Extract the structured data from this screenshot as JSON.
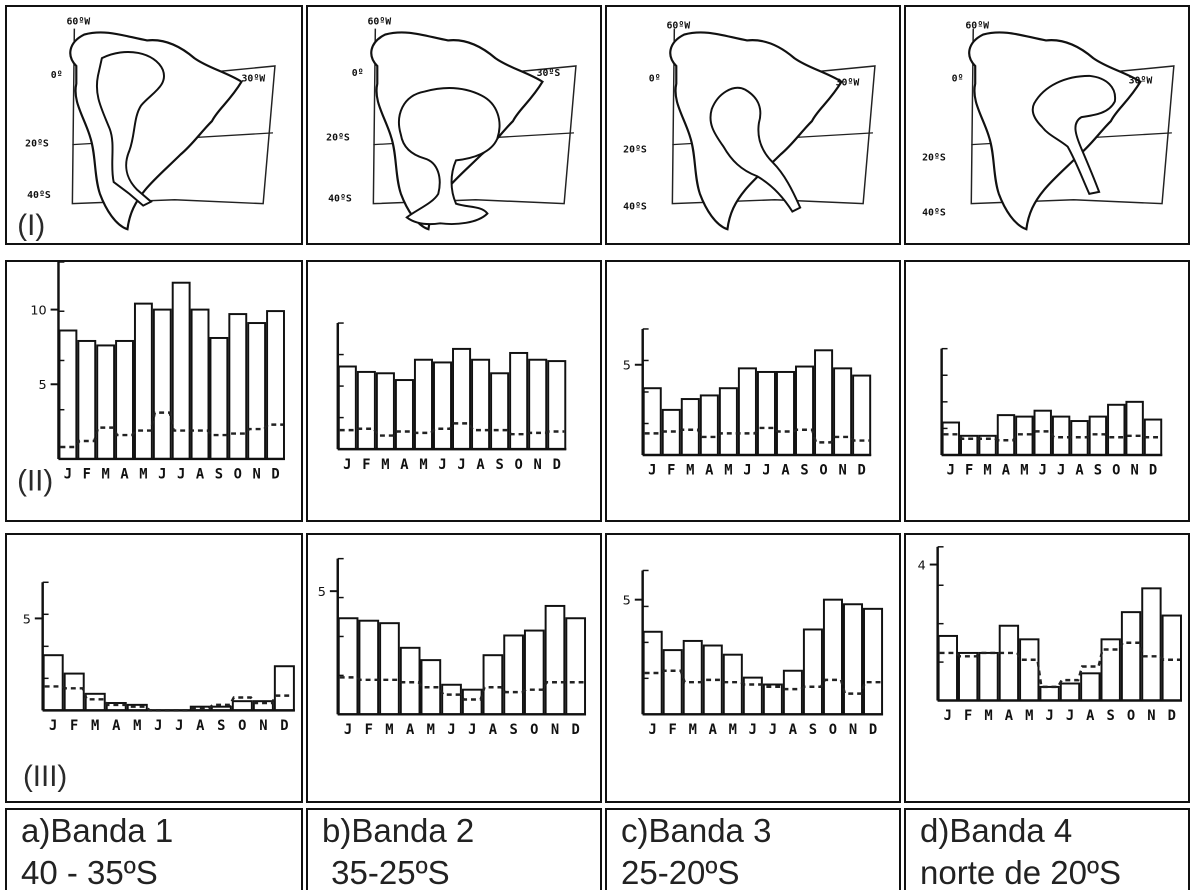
{
  "figure": {
    "panels": [
      {
        "id": "a",
        "caption_line1": "a)Banda 1",
        "caption_line2": "40 - 35ºS",
        "map_labels": [
          "60ºW",
          "0º",
          "30ºW",
          "20ºS",
          "40ºS"
        ]
      },
      {
        "id": "b",
        "caption_line1": "b)Banda 2",
        "caption_line2": " 35-25ºS",
        "map_labels": [
          "60ºW",
          "0º",
          "30ºS",
          "20ºS",
          "40ºS"
        ]
      },
      {
        "id": "c",
        "caption_line1": "c)Banda 3",
        "caption_line2": "25-20ºS",
        "map_labels": [
          "60ºW",
          "0º",
          "30ºW",
          "20ºS",
          "40ºS"
        ]
      },
      {
        "id": "d",
        "caption_line1": "d)Banda 4",
        "caption_line2": "norte de 20ºS",
        "map_labels": [
          "60ºW",
          "0º",
          "30ºW",
          "20ºS",
          "40ºS"
        ]
      }
    ],
    "row_labels": [
      "(I)",
      "(II)",
      "(III)"
    ]
  },
  "chart_data": [
    {
      "type": "bar",
      "panel": "a",
      "row": "II",
      "categories": [
        "J",
        "F",
        "M",
        "A",
        "M",
        "J",
        "J",
        "A",
        "S",
        "O",
        "N",
        "D"
      ],
      "series": [
        {
          "values": [
            8.6,
            7.9,
            7.6,
            7.9,
            10.4,
            10.0,
            11.8,
            10.0,
            8.1,
            9.7,
            9.1,
            9.9
          ]
        },
        {
          "values": [
            0.8,
            1.2,
            2.1,
            1.6,
            1.9,
            3.1,
            1.9,
            1.9,
            1.6,
            1.7,
            2.0,
            2.3
          ]
        }
      ],
      "ylim": [
        0,
        12
      ],
      "ytick_labels": [
        "5",
        "10"
      ]
    },
    {
      "type": "bar",
      "panel": "b",
      "row": "II",
      "categories": [
        "J",
        "F",
        "M",
        "A",
        "M",
        "J",
        "J",
        "A",
        "S",
        "O",
        "N",
        "D"
      ],
      "series": [
        {
          "values": [
            6.1,
            5.7,
            5.6,
            5.1,
            6.6,
            6.4,
            7.4,
            6.6,
            5.6,
            7.1,
            6.6,
            6.5
          ]
        },
        {
          "values": [
            1.4,
            1.5,
            1.0,
            1.3,
            1.2,
            1.5,
            1.9,
            1.4,
            1.4,
            1.1,
            1.2,
            1.3
          ]
        }
      ],
      "ylim": [
        0,
        8
      ]
    },
    {
      "type": "bar",
      "panel": "c",
      "row": "II",
      "categories": [
        "J",
        "F",
        "M",
        "A",
        "M",
        "J",
        "J",
        "A",
        "S",
        "O",
        "N",
        "D"
      ],
      "series": [
        {
          "values": [
            3.7,
            2.5,
            3.1,
            3.3,
            3.7,
            4.8,
            4.6,
            4.6,
            4.9,
            5.8,
            4.8,
            4.4
          ]
        },
        {
          "values": [
            1.2,
            1.3,
            1.4,
            1.0,
            1.2,
            1.2,
            1.5,
            1.3,
            1.4,
            0.7,
            1.0,
            0.8
          ]
        }
      ],
      "ylim": [
        0,
        6
      ],
      "ytick_labels": [
        "5"
      ]
    },
    {
      "type": "bar",
      "panel": "d",
      "row": "II",
      "categories": [
        "J",
        "F",
        "M",
        "A",
        "M",
        "J",
        "J",
        "A",
        "S",
        "O",
        "N",
        "D"
      ],
      "series": [
        {
          "values": [
            2.2,
            1.3,
            1.3,
            2.7,
            2.6,
            3.0,
            2.6,
            2.3,
            2.6,
            3.4,
            3.6,
            2.4
          ]
        },
        {
          "values": [
            1.4,
            1.1,
            1.1,
            1.0,
            1.4,
            1.6,
            1.2,
            1.2,
            1.4,
            1.2,
            1.3,
            1.2
          ]
        }
      ],
      "ylim": [
        0,
        6
      ]
    },
    {
      "type": "bar",
      "panel": "a",
      "row": "III",
      "categories": [
        "J",
        "F",
        "M",
        "A",
        "M",
        "J",
        "J",
        "A",
        "S",
        "O",
        "N",
        "D"
      ],
      "series": [
        {
          "values": [
            3.0,
            2.0,
            0.9,
            0.4,
            0.3,
            0.0,
            0.0,
            0.2,
            0.2,
            0.5,
            0.5,
            2.4
          ]
        },
        {
          "values": [
            1.3,
            1.2,
            0.6,
            0.3,
            0.2,
            0.0,
            0.0,
            0.1,
            0.3,
            0.7,
            0.4,
            0.8
          ]
        }
      ],
      "ylim": [
        0,
        6
      ],
      "ytick_labels": [
        "5"
      ]
    },
    {
      "type": "bar",
      "panel": "b",
      "row": "III",
      "categories": [
        "J",
        "F",
        "M",
        "A",
        "M",
        "J",
        "J",
        "A",
        "S",
        "O",
        "N",
        "D"
      ],
      "series": [
        {
          "values": [
            3.9,
            3.8,
            3.7,
            2.7,
            2.2,
            1.2,
            1.0,
            2.4,
            3.2,
            3.4,
            4.4,
            3.9
          ]
        },
        {
          "values": [
            1.5,
            1.4,
            1.4,
            1.3,
            1.1,
            0.8,
            0.6,
            1.1,
            0.9,
            1.0,
            1.3,
            1.3
          ]
        }
      ],
      "ylim": [
        0,
        5.6
      ],
      "ytick_labels": [
        "5"
      ]
    },
    {
      "type": "bar",
      "panel": "c",
      "row": "III",
      "categories": [
        "J",
        "F",
        "M",
        "A",
        "M",
        "J",
        "J",
        "A",
        "S",
        "O",
        "N",
        "D"
      ],
      "series": [
        {
          "values": [
            3.6,
            2.8,
            3.2,
            3.0,
            2.6,
            1.6,
            1.3,
            1.9,
            3.7,
            5.0,
            4.8,
            4.6
          ]
        },
        {
          "values": [
            1.8,
            1.9,
            1.4,
            1.5,
            1.4,
            1.3,
            1.2,
            1.1,
            1.2,
            1.5,
            0.9,
            1.4
          ]
        }
      ],
      "ylim": [
        0,
        5.5
      ],
      "ytick_labels": [
        "5"
      ]
    },
    {
      "type": "bar",
      "panel": "d",
      "row": "III",
      "categories": [
        "J",
        "F",
        "M",
        "A",
        "M",
        "J",
        "J",
        "A",
        "S",
        "O",
        "N",
        "D"
      ],
      "series": [
        {
          "values": [
            1.9,
            1.4,
            1.4,
            2.2,
            1.8,
            0.4,
            0.5,
            0.8,
            1.8,
            2.6,
            3.3,
            2.5
          ]
        },
        {
          "values": [
            1.4,
            1.3,
            1.4,
            1.4,
            1.2,
            0.4,
            0.6,
            1.0,
            1.5,
            1.7,
            1.3,
            1.2
          ]
        }
      ],
      "ylim": [
        0,
        4
      ],
      "ytick_labels": [
        "4"
      ]
    }
  ]
}
